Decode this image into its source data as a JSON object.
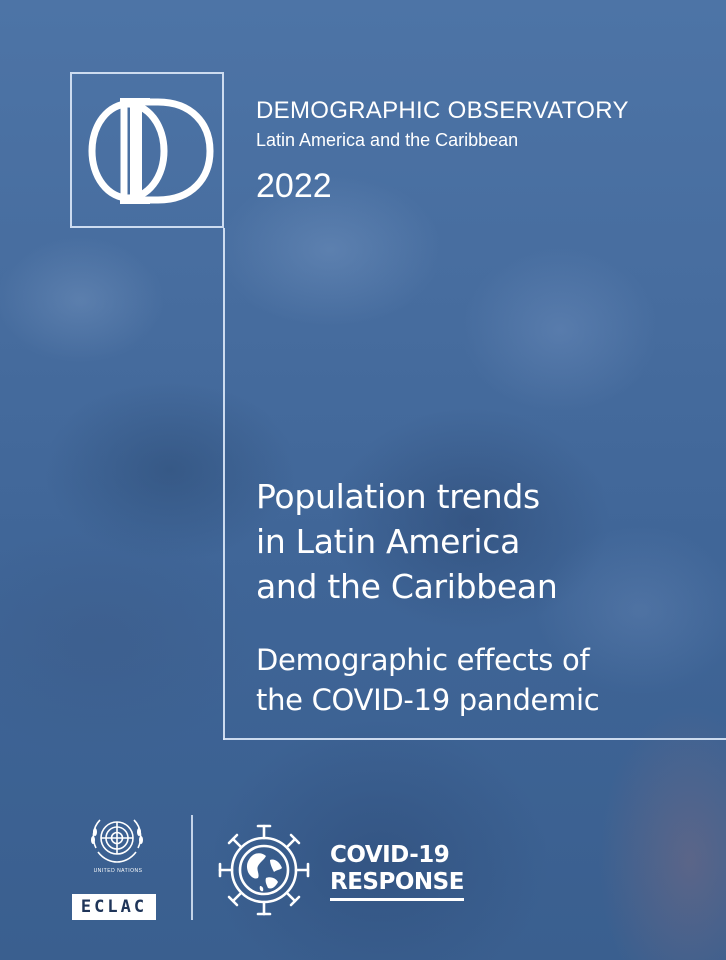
{
  "series": {
    "title": "DEMOGRAPHIC OBSERVATORY",
    "region": "Latin America and the Caribbean",
    "year": "2022"
  },
  "title_lines": [
    "Population trends",
    "in Latin America",
    "and the Caribbean"
  ],
  "subtitle_lines": [
    "Demographic effects of",
    "the COVID-19 pandemic"
  ],
  "footer": {
    "un_caption": "UNITED NATIONS",
    "eclac_label": "ECLAC",
    "covid_line1": "COVID-19",
    "covid_line2": "RESPONSE"
  },
  "colors": {
    "background": "#3a5f8f",
    "frame": "#dce8f8",
    "text": "#ffffff"
  },
  "icons": {
    "logo": "od-monogram-icon",
    "un": "un-emblem-icon",
    "covid": "virus-globe-icon"
  }
}
